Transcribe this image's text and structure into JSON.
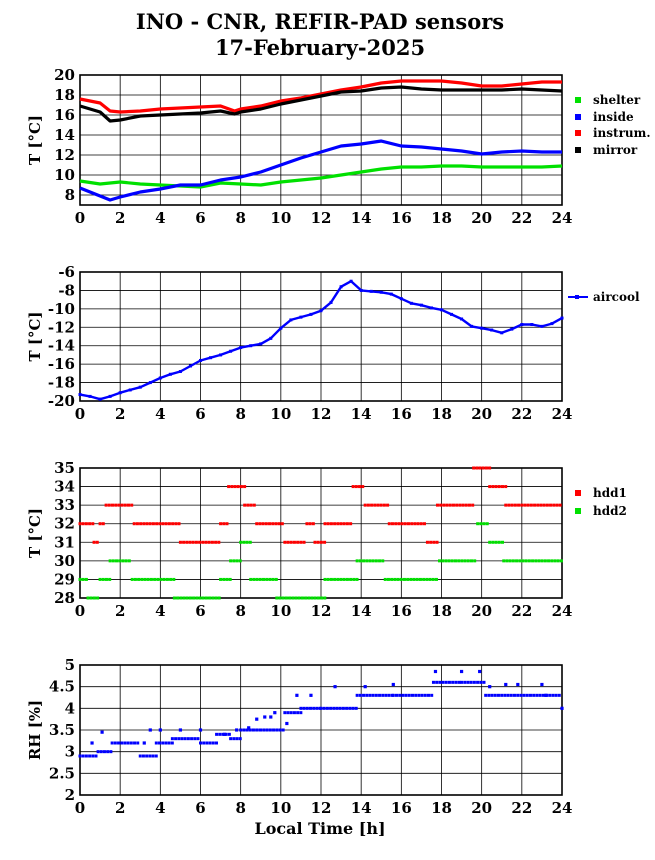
{
  "title": "INO - CNR, REFIR-PAD sensors",
  "date": "17-February-2025",
  "xlabel": "Local Time [h]",
  "chart_data": [
    {
      "type": "line",
      "ylabel": "T [°C]",
      "xlim": [
        0,
        24
      ],
      "ylim": [
        7,
        20
      ],
      "xticks": [
        0,
        2,
        4,
        6,
        8,
        10,
        12,
        14,
        16,
        18,
        20,
        22,
        24
      ],
      "yticks": [
        8,
        10,
        12,
        14,
        16,
        18,
        20
      ],
      "grid": true,
      "legend": "right",
      "series": [
        {
          "name": "shelter",
          "color": "#00e000",
          "x": [
            0,
            1,
            2,
            3,
            4,
            5,
            6,
            7,
            8,
            9,
            10,
            11,
            12,
            13,
            14,
            15,
            16,
            17,
            18,
            19,
            20,
            21,
            22,
            23,
            24
          ],
          "y": [
            9.4,
            9.1,
            9.3,
            9.1,
            9.0,
            8.9,
            8.8,
            9.2,
            9.1,
            9.0,
            9.3,
            9.5,
            9.7,
            10.0,
            10.3,
            10.6,
            10.8,
            10.8,
            10.9,
            10.9,
            10.8,
            10.8,
            10.8,
            10.8,
            10.9
          ]
        },
        {
          "name": "inside",
          "color": "#0000ff",
          "x": [
            0,
            1,
            1.5,
            2,
            3,
            4,
            5,
            6,
            7,
            8,
            9,
            10,
            11,
            12,
            13,
            14,
            15,
            16,
            17,
            18,
            19,
            20,
            21,
            22,
            23,
            24
          ],
          "y": [
            8.7,
            7.9,
            7.5,
            7.8,
            8.3,
            8.6,
            9.0,
            9.0,
            9.5,
            9.8,
            10.3,
            11.0,
            11.7,
            12.3,
            12.9,
            13.1,
            13.4,
            12.9,
            12.8,
            12.6,
            12.4,
            12.1,
            12.3,
            12.4,
            12.3,
            12.3
          ]
        },
        {
          "name": "instrum.",
          "color": "#ff0000",
          "x": [
            0,
            1,
            1.5,
            2,
            3,
            4,
            5,
            6,
            7,
            7.7,
            8,
            9,
            10,
            11,
            12,
            13,
            14,
            15,
            16,
            17,
            18,
            19,
            20,
            21,
            22,
            23,
            24
          ],
          "y": [
            17.6,
            17.2,
            16.4,
            16.3,
            16.4,
            16.6,
            16.7,
            16.8,
            16.9,
            16.4,
            16.6,
            16.9,
            17.4,
            17.7,
            18.1,
            18.5,
            18.8,
            19.2,
            19.4,
            19.4,
            19.4,
            19.2,
            18.9,
            18.9,
            19.1,
            19.3,
            19.3
          ]
        },
        {
          "name": "mirror",
          "color": "#000000",
          "x": [
            0,
            1,
            1.5,
            2,
            3,
            4,
            5,
            6,
            7,
            7.7,
            8,
            9,
            10,
            11,
            12,
            13,
            14,
            15,
            16,
            17,
            18,
            19,
            20,
            21,
            22,
            23,
            24
          ],
          "y": [
            16.9,
            16.3,
            15.4,
            15.5,
            15.9,
            16.0,
            16.1,
            16.2,
            16.4,
            16.1,
            16.3,
            16.6,
            17.1,
            17.5,
            17.9,
            18.3,
            18.4,
            18.7,
            18.8,
            18.6,
            18.5,
            18.5,
            18.5,
            18.5,
            18.6,
            18.5,
            18.4
          ]
        }
      ]
    },
    {
      "type": "line",
      "ylabel": "T [°C]",
      "xlim": [
        0,
        24
      ],
      "ylim": [
        -20,
        -6
      ],
      "xticks": [
        0,
        2,
        4,
        6,
        8,
        10,
        12,
        14,
        16,
        18,
        20,
        22,
        24
      ],
      "yticks": [
        -20,
        -18,
        -16,
        -14,
        -12,
        -10,
        -8,
        -6
      ],
      "grid": true,
      "legend": "right",
      "series": [
        {
          "name": "aircool",
          "color": "#0000ff",
          "x": [
            0,
            0.5,
            1,
            1.5,
            2,
            2.5,
            3,
            3.5,
            4,
            4.5,
            5,
            5.5,
            6,
            6.5,
            7,
            7.5,
            8,
            8.5,
            9,
            9.5,
            10,
            10.5,
            11,
            11.5,
            12,
            12.5,
            13,
            13.5,
            14,
            14.5,
            15,
            15.5,
            16,
            16.5,
            17,
            17.5,
            18,
            18.5,
            19,
            19.5,
            20,
            20.5,
            21,
            21.5,
            22,
            22.5,
            23,
            23.5,
            24
          ],
          "y": [
            -19.3,
            -19.5,
            -19.8,
            -19.5,
            -19.1,
            -18.8,
            -18.5,
            -18.0,
            -17.5,
            -17.1,
            -16.8,
            -16.2,
            -15.6,
            -15.3,
            -15.0,
            -14.6,
            -14.2,
            -14.0,
            -13.8,
            -13.2,
            -12.1,
            -11.2,
            -10.9,
            -10.6,
            -10.2,
            -9.3,
            -7.6,
            -7.0,
            -8.0,
            -8.1,
            -8.2,
            -8.4,
            -8.9,
            -9.4,
            -9.6,
            -9.9,
            -10.1,
            -10.6,
            -11.1,
            -11.9,
            -12.1,
            -12.3,
            -12.6,
            -12.2,
            -11.7,
            -11.7,
            -11.9,
            -11.6,
            -11.0
          ]
        }
      ]
    },
    {
      "type": "scatter",
      "ylabel": "T [°C]",
      "xlim": [
        0,
        24
      ],
      "ylim": [
        28,
        35
      ],
      "xticks": [
        0,
        2,
        4,
        6,
        8,
        10,
        12,
        14,
        16,
        18,
        20,
        22,
        24
      ],
      "yticks": [
        28,
        29,
        30,
        31,
        32,
        33,
        34,
        35
      ],
      "grid": true,
      "legend": "right",
      "series": [
        {
          "name": "hdd1",
          "color": "#ff0000",
          "segments": [
            [
              0,
              0.7,
              32
            ],
            [
              0.7,
              1.0,
              31
            ],
            [
              1.0,
              1.3,
              32
            ],
            [
              1.3,
              2.7,
              33
            ],
            [
              2.7,
              5.0,
              32
            ],
            [
              5.0,
              7.0,
              31
            ],
            [
              7.0,
              7.4,
              32
            ],
            [
              7.4,
              8.2,
              34
            ],
            [
              8.2,
              8.8,
              33
            ],
            [
              8.8,
              10.2,
              32
            ],
            [
              10.2,
              11.3,
              31
            ],
            [
              11.3,
              11.7,
              32
            ],
            [
              11.7,
              12.2,
              31
            ],
            [
              12.2,
              13.6,
              32
            ],
            [
              13.6,
              14.2,
              34
            ],
            [
              14.2,
              15.4,
              33
            ],
            [
              15.4,
              17.3,
              32
            ],
            [
              17.3,
              17.8,
              31
            ],
            [
              17.8,
              19.6,
              33
            ],
            [
              19.6,
              20.4,
              35
            ],
            [
              20.4,
              21.2,
              34
            ],
            [
              21.2,
              24,
              33
            ]
          ]
        },
        {
          "name": "hdd2",
          "color": "#00e000",
          "segments": [
            [
              0,
              0.4,
              29
            ],
            [
              0.4,
              1.0,
              28
            ],
            [
              1.0,
              1.5,
              29
            ],
            [
              1.5,
              2.6,
              30
            ],
            [
              2.6,
              4.7,
              29
            ],
            [
              4.7,
              7.0,
              28
            ],
            [
              7.0,
              7.5,
              29
            ],
            [
              7.5,
              8.0,
              30
            ],
            [
              8.0,
              8.5,
              31
            ],
            [
              8.5,
              9.8,
              29
            ],
            [
              9.8,
              12.2,
              28
            ],
            [
              12.2,
              13.8,
              29
            ],
            [
              13.8,
              15.2,
              30
            ],
            [
              15.2,
              17.9,
              29
            ],
            [
              17.9,
              19.8,
              30
            ],
            [
              19.8,
              20.4,
              32
            ],
            [
              20.4,
              21.1,
              31
            ],
            [
              21.1,
              24,
              30
            ]
          ]
        }
      ]
    },
    {
      "type": "scatter",
      "ylabel": "RH [%]",
      "xlim": [
        0,
        24
      ],
      "ylim": [
        2,
        5
      ],
      "xticks": [
        0,
        2,
        4,
        6,
        8,
        10,
        12,
        14,
        16,
        18,
        20,
        22,
        24
      ],
      "yticks": [
        2,
        2.5,
        3,
        3.5,
        4,
        4.5,
        5
      ],
      "grid": true,
      "series": [
        {
          "name": "",
          "color": "#0000ff",
          "segments": [
            [
              0,
              0.9,
              2.9
            ],
            [
              0.9,
              1.6,
              3.0
            ],
            [
              1.6,
              3.0,
              3.2
            ],
            [
              3.0,
              3.8,
              2.9
            ],
            [
              3.8,
              4.6,
              3.2
            ],
            [
              4.6,
              6.0,
              3.3
            ],
            [
              6.0,
              6.8,
              3.2
            ],
            [
              6.8,
              7.5,
              3.4
            ],
            [
              7.5,
              8.0,
              3.3
            ],
            [
              8.0,
              9.0,
              3.5
            ],
            [
              9.0,
              10.2,
              3.5
            ],
            [
              10.2,
              11.0,
              3.9
            ],
            [
              11.0,
              12.0,
              4.0
            ],
            [
              12.0,
              13.8,
              4.0
            ],
            [
              13.8,
              15.6,
              4.3
            ],
            [
              15.6,
              17.6,
              4.3
            ],
            [
              17.6,
              19.0,
              4.6
            ],
            [
              19.0,
              20.2,
              4.6
            ],
            [
              20.2,
              24,
              4.3
            ]
          ],
          "points": [
            [
              0.6,
              3.2
            ],
            [
              1.1,
              3.45
            ],
            [
              3.2,
              3.2
            ],
            [
              3.5,
              3.5
            ],
            [
              4.0,
              3.5
            ],
            [
              5.0,
              3.5
            ],
            [
              6.0,
              3.5
            ],
            [
              7.2,
              3.4
            ],
            [
              7.8,
              3.5
            ],
            [
              8.4,
              3.55
            ],
            [
              8.8,
              3.75
            ],
            [
              9.2,
              3.8
            ],
            [
              9.5,
              3.8
            ],
            [
              9.7,
              3.9
            ],
            [
              10.3,
              3.65
            ],
            [
              10.8,
              4.3
            ],
            [
              11.5,
              4.3
            ],
            [
              12.7,
              4.5
            ],
            [
              14.2,
              4.5
            ],
            [
              15.6,
              4.55
            ],
            [
              17.7,
              4.85
            ],
            [
              19.0,
              4.85
            ],
            [
              19.9,
              4.85
            ],
            [
              20.4,
              4.5
            ],
            [
              21.2,
              4.55
            ],
            [
              21.8,
              4.55
            ],
            [
              23.0,
              4.55
            ],
            [
              23.2,
              4.3
            ],
            [
              24.0,
              4.0
            ]
          ]
        }
      ]
    }
  ]
}
